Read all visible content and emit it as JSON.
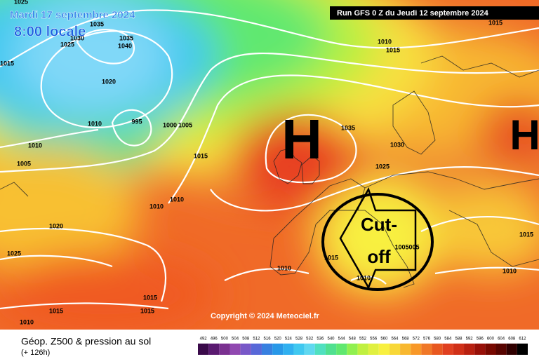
{
  "header": {
    "date": "Mardi 17 septembre 2024",
    "time": "8:00 locale",
    "run": "Run GFS 0 Z du Jeudi 12 septembre 2024"
  },
  "map": {
    "highs": [
      "H",
      "H"
    ],
    "cutoff": [
      "Cut-",
      "off"
    ],
    "copyright": "Copyright © 2024 Meteociel.fr",
    "isobar_labels": [
      1025,
      1035,
      1030,
      1025,
      1035,
      1040,
      1015,
      1020,
      1010,
      995,
      1000,
      1005,
      1010,
      1005,
      1015,
      1010,
      1010,
      1020,
      1025,
      1010,
      1015,
      1015,
      1035,
      1030,
      1025,
      1015,
      1005005,
      1010,
      1010,
      1010,
      1015,
      1015,
      1015,
      1015,
      1010
    ]
  },
  "legend": {
    "title": "Géop. Z500 & pression au sol",
    "subtitle": "(+ 126h)",
    "labels": [
      492,
      496,
      500,
      504,
      508,
      512,
      516,
      520,
      524,
      528,
      532,
      536,
      540,
      544,
      548,
      552,
      556,
      560,
      564,
      568,
      572,
      576,
      580,
      584,
      588,
      592,
      596,
      600,
      604,
      608,
      612
    ],
    "colors": [
      "#3a0a4a",
      "#5a1a70",
      "#7a3090",
      "#9048b0",
      "#7858c8",
      "#5868d8",
      "#3880e0",
      "#2898e8",
      "#30b0f0",
      "#40c8f0",
      "#60d8f0",
      "#50e0c0",
      "#50e090",
      "#60e870",
      "#90f050",
      "#c0f040",
      "#e0f040",
      "#f8f040",
      "#f8d838",
      "#f8b830",
      "#f89828",
      "#f07828",
      "#e85820",
      "#e04020",
      "#d03018",
      "#b82010",
      "#981008",
      "#780800",
      "#580400",
      "#300000",
      "#000000"
    ]
  }
}
